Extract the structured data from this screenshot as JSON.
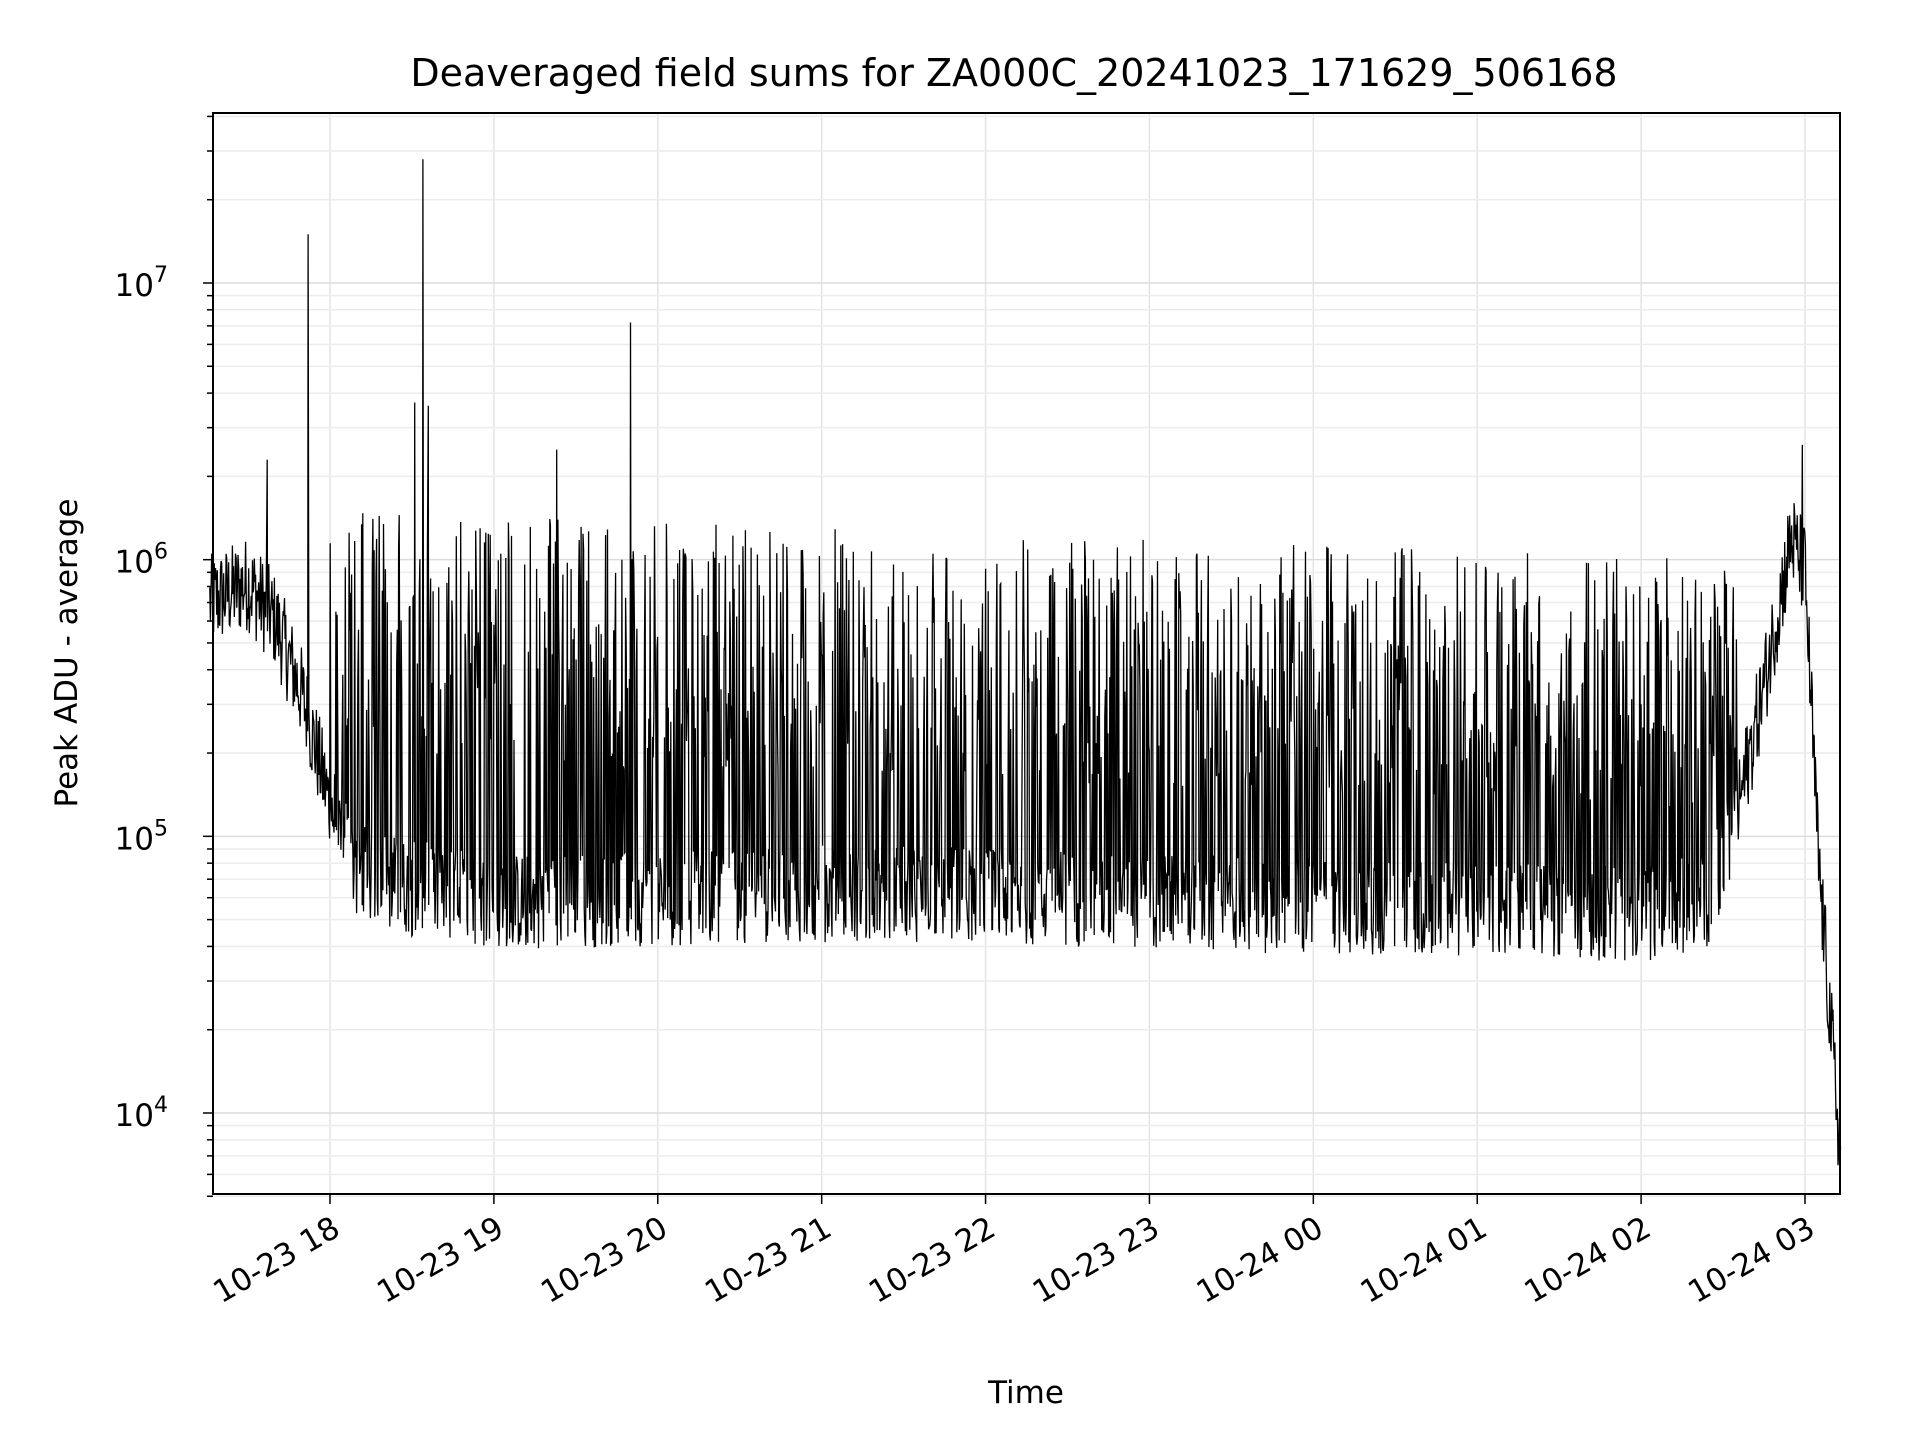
{
  "chart_data": {
    "type": "line",
    "title": "Deaveraged field sums for ZA000C_20241023_171629_506168",
    "xlabel": "Time",
    "ylabel": "Peak ADU - average",
    "yscale": "log",
    "ylim": [
      5000,
      40000000
    ],
    "xlim": [
      "2024-10-23 17:16:29",
      "2024-10-24 03:13:00"
    ],
    "grid": true,
    "line_color": "#000000",
    "x_ticks": [
      "10-23 18",
      "10-23 19",
      "10-23 20",
      "10-23 21",
      "10-23 22",
      "10-23 23",
      "10-24 00",
      "10-24 01",
      "10-24 02",
      "10-24 03"
    ],
    "y_ticks": [
      {
        "value": 10000,
        "base": "10",
        "exponent": "4"
      },
      {
        "value": 100000,
        "base": "10",
        "exponent": "5"
      },
      {
        "value": 1000000,
        "base": "10",
        "exponent": "6"
      },
      {
        "value": 10000000,
        "base": "10",
        "exponent": "7"
      }
    ],
    "series": [
      {
        "baseline": [
          {
            "x": "2024-10-23 17:16",
            "y": 700000
          },
          {
            "x": "2024-10-23 17:30",
            "y": 820000
          },
          {
            "x": "2024-10-23 17:40",
            "y": 600000
          },
          {
            "x": "2024-10-23 17:50",
            "y": 320000
          },
          {
            "x": "2024-10-23 18:00",
            "y": 130000
          },
          {
            "x": "2024-10-23 18:10",
            "y": 75000
          },
          {
            "x": "2024-10-23 18:30",
            "y": 65000
          },
          {
            "x": "2024-10-23 19:00",
            "y": 58000
          },
          {
            "x": "2024-10-23 20:00",
            "y": 60000
          },
          {
            "x": "2024-10-23 21:00",
            "y": 62000
          },
          {
            "x": "2024-10-23 22:00",
            "y": 62000
          },
          {
            "x": "2024-10-23 23:00",
            "y": 58000
          },
          {
            "x": "2024-10-24 00:00",
            "y": 56000
          },
          {
            "x": "2024-10-24 01:00",
            "y": 55000
          },
          {
            "x": "2024-10-24 02:00",
            "y": 52000
          },
          {
            "x": "2024-10-24 02:25",
            "y": 60000
          },
          {
            "x": "2024-10-24 02:35",
            "y": 120000
          },
          {
            "x": "2024-10-24 02:45",
            "y": 350000
          },
          {
            "x": "2024-10-24 02:55",
            "y": 1200000
          },
          {
            "x": "2024-10-24 03:00",
            "y": 900000
          },
          {
            "x": "2024-10-24 03:05",
            "y": 80000
          },
          {
            "x": "2024-10-24 03:13",
            "y": 7000
          }
        ],
        "spikes": [
          {
            "x": "2024-10-23 17:52",
            "y": 15000000
          },
          {
            "x": "2024-10-23 18:34",
            "y": 28000000
          },
          {
            "x": "2024-10-23 18:31",
            "y": 3700000
          },
          {
            "x": "2024-10-23 18:36",
            "y": 3600000
          },
          {
            "x": "2024-10-23 19:23",
            "y": 2500000
          },
          {
            "x": "2024-10-23 19:50",
            "y": 7200000
          },
          {
            "x": "2024-10-23 17:37",
            "y": 2300000
          },
          {
            "x": "2024-10-24 02:59",
            "y": 2600000
          }
        ],
        "oscillation_band": {
          "from": "2024-10-23 18:00",
          "to": "2024-10-24 02:35",
          "upper_early": 1500000,
          "upper_late": 1000000
        }
      }
    ]
  }
}
